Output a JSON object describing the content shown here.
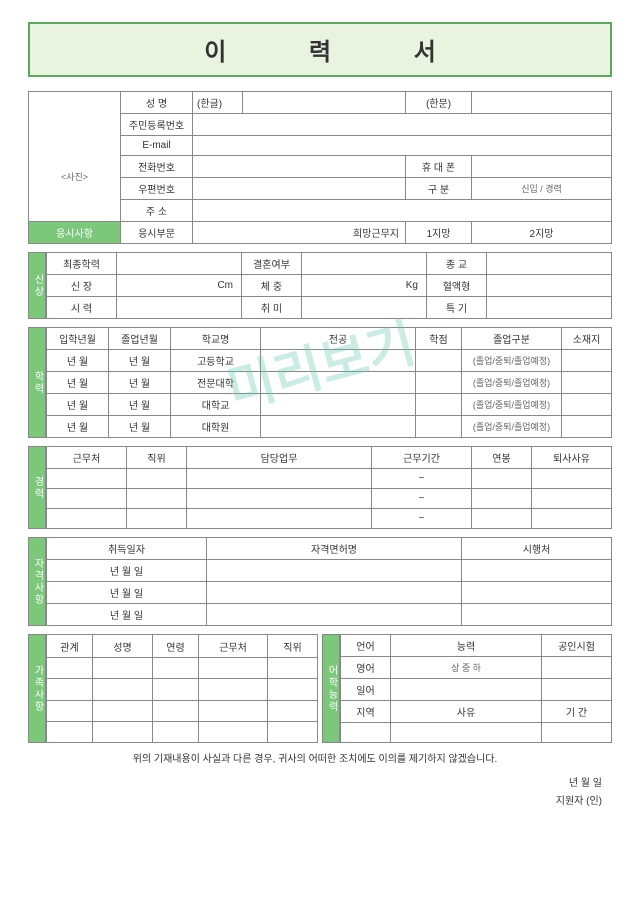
{
  "title": "이 력 서",
  "watermark": "미리보기",
  "top": {
    "photo_label": "<사진>",
    "name_label": "성    명",
    "hangul": "(한글)",
    "hanmun": "(한문)",
    "ssn_label": "주민등록번호",
    "email_label": "E-mail",
    "phone_label": "전화번호",
    "mobile_label": "휴 대 폰",
    "zip_label": "우편번호",
    "gubun_label": "구    분",
    "gubun_val": "신입 / 경력",
    "addr_label": "주    소",
    "apply_label": "응시사항",
    "apply_field": "응시부문",
    "desired_loc": "희망근무지",
    "choice1": "1지망",
    "choice2": "2지망"
  },
  "personal": {
    "tab": "신상",
    "edu_final": "최종학력",
    "marriage": "결혼여부",
    "religion": "종    교",
    "height": "신    장",
    "height_unit": "Cm",
    "weight": "체    중",
    "weight_unit": "Kg",
    "blood": "혈액형",
    "eyesight": "시    력",
    "hobby": "취    미",
    "special": "특    기"
  },
  "edu": {
    "tab": "학력",
    "h_enroll": "입학년월",
    "h_grad": "졸업년월",
    "h_school": "학교명",
    "h_major": "전공",
    "h_gpa": "학점",
    "h_status": "졸업구분",
    "h_loc": "소재지",
    "ym": "년    월",
    "schools": [
      "고등학교",
      "전문대학",
      "대학교",
      "대학원"
    ],
    "status_opt": "(졸업/중퇴/졸업예정)"
  },
  "career": {
    "tab": "경력",
    "h_company": "근무처",
    "h_pos": "직위",
    "h_duty": "담당업무",
    "h_period": "근무기간",
    "h_salary": "연봉",
    "h_reason": "퇴사사유",
    "tilde": "~"
  },
  "cert": {
    "tab": "자격사항",
    "h_date": "취득일자",
    "h_name": "자격면허명",
    "h_issuer": "시행처",
    "ymd": "년         월         일"
  },
  "family": {
    "tab": "가족사항",
    "h_rel": "관계",
    "h_name": "성명",
    "h_age": "연령",
    "h_work": "근무처",
    "h_pos": "직위"
  },
  "lang": {
    "tab": "어학능력",
    "h_lang": "언어",
    "h_ability": "능력",
    "h_test": "공인시험",
    "english": "영어",
    "japanese": "일어",
    "level": "상 중 하",
    "h_region": "지역",
    "h_reason": "사유",
    "h_period": "기   간"
  },
  "footer": {
    "stmt": "위의 기재내용이 사실과 다른 경우, 귀사의 어떠한 조치에도 이의를 제기하지 않겠습니다.",
    "date": "년            월            일",
    "applicant": "지원자                    (인)"
  },
  "colors": {
    "green": "#7bc87b",
    "title_bg": "#e8f4e0",
    "border": "#888"
  }
}
